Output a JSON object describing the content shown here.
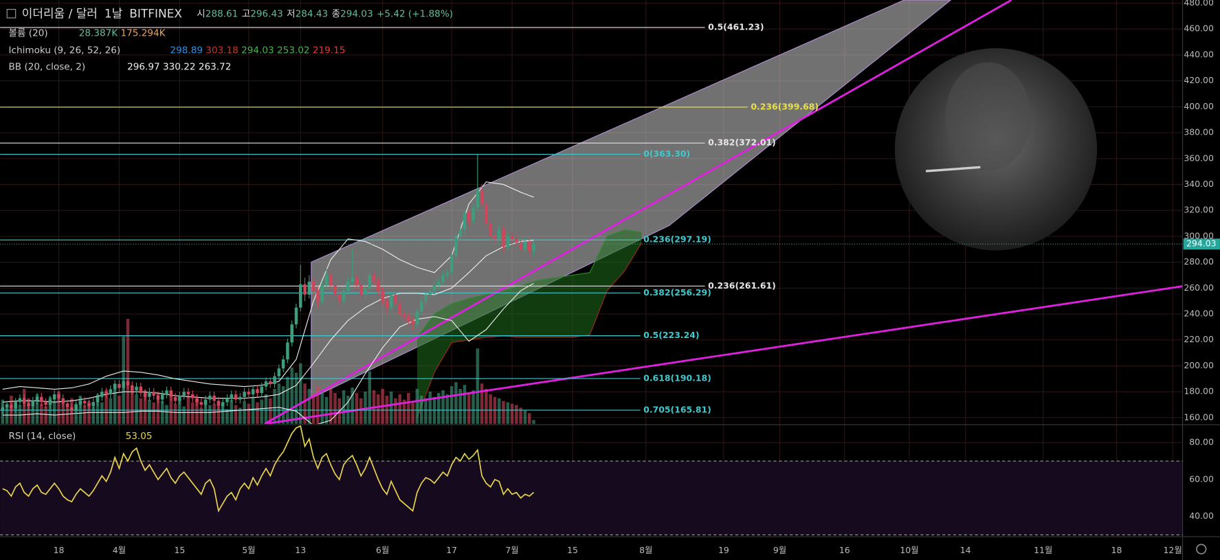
{
  "header": {
    "symbol": "이더리움 / 달러",
    "interval": "1날",
    "exchange": "BITFINEX",
    "ohlc_labels": [
      "시",
      "고",
      "저",
      "종"
    ],
    "change": "+5.42 (+1.88%)"
  },
  "chart_data": {
    "type": "candlestick",
    "up_color": "#3f9c7d",
    "down_color": "#d0465a",
    "candles": [
      [
        166,
        171,
        163,
        168
      ],
      [
        168,
        173,
        165,
        170
      ],
      [
        170,
        173,
        164,
        167
      ],
      [
        167,
        175,
        164,
        172
      ],
      [
        172,
        178,
        169,
        175
      ],
      [
        175,
        178,
        168,
        171
      ],
      [
        171,
        174,
        166,
        169
      ],
      [
        169,
        176,
        166,
        173
      ],
      [
        173,
        179,
        170,
        176
      ],
      [
        176,
        179,
        169,
        172
      ],
      [
        172,
        175,
        167,
        170
      ],
      [
        170,
        177,
        167,
        174
      ],
      [
        174,
        181,
        171,
        178
      ],
      [
        178,
        181,
        172,
        175
      ],
      [
        175,
        178,
        168,
        171
      ],
      [
        171,
        174,
        165,
        168
      ],
      [
        168,
        171,
        163,
        166
      ],
      [
        166,
        173,
        163,
        170
      ],
      [
        170,
        176,
        167,
        173
      ],
      [
        173,
        176,
        168,
        171
      ],
      [
        171,
        174,
        166,
        169
      ],
      [
        169,
        175,
        166,
        172
      ],
      [
        172,
        179,
        169,
        176
      ],
      [
        176,
        183,
        173,
        180
      ],
      [
        180,
        183,
        175,
        178
      ],
      [
        178,
        185,
        175,
        182
      ],
      [
        182,
        189,
        179,
        186
      ],
      [
        186,
        189,
        180,
        183
      ],
      [
        183,
        191,
        180,
        188
      ],
      [
        188,
        191,
        182,
        185
      ],
      [
        185,
        188,
        178,
        181
      ],
      [
        181,
        187,
        178,
        184
      ],
      [
        184,
        187,
        176,
        179
      ],
      [
        179,
        182,
        173,
        176
      ],
      [
        176,
        183,
        173,
        180
      ],
      [
        180,
        183,
        174,
        177
      ],
      [
        177,
        180,
        171,
        174
      ],
      [
        174,
        181,
        171,
        178
      ],
      [
        178,
        184,
        175,
        181
      ],
      [
        181,
        184,
        173,
        176
      ],
      [
        176,
        179,
        170,
        173
      ],
      [
        173,
        180,
        170,
        177
      ],
      [
        177,
        183,
        174,
        180
      ],
      [
        180,
        183,
        175,
        178
      ],
      [
        178,
        181,
        172,
        175
      ],
      [
        175,
        178,
        169,
        172
      ],
      [
        172,
        175,
        167,
        170
      ],
      [
        170,
        177,
        167,
        174
      ],
      [
        174,
        180,
        171,
        177
      ],
      [
        177,
        180,
        170,
        173
      ],
      [
        173,
        176,
        166,
        169
      ],
      [
        169,
        175,
        166,
        172
      ],
      [
        172,
        178,
        169,
        175
      ],
      [
        175,
        181,
        172,
        178
      ],
      [
        178,
        181,
        171,
        174
      ],
      [
        174,
        179,
        171,
        176
      ],
      [
        176,
        183,
        173,
        180
      ],
      [
        180,
        183,
        175,
        178
      ],
      [
        178,
        185,
        175,
        182
      ],
      [
        182,
        185,
        176,
        179
      ],
      [
        179,
        187,
        176,
        184
      ],
      [
        184,
        191,
        181,
        188
      ],
      [
        188,
        191,
        183,
        186
      ],
      [
        186,
        195,
        183,
        192
      ],
      [
        192,
        201,
        189,
        198
      ],
      [
        198,
        208,
        195,
        205
      ],
      [
        205,
        221,
        202,
        218
      ],
      [
        218,
        235,
        215,
        232
      ],
      [
        232,
        248,
        229,
        245
      ],
      [
        245,
        278,
        242,
        263
      ],
      [
        263,
        268,
        250,
        255
      ],
      [
        255,
        270,
        252,
        265
      ],
      [
        265,
        268,
        254,
        258
      ],
      [
        258,
        261,
        245,
        250
      ],
      [
        250,
        265,
        247,
        262
      ],
      [
        262,
        275,
        259,
        270
      ],
      [
        270,
        273,
        259,
        262
      ],
      [
        262,
        265,
        252,
        255
      ],
      [
        255,
        258,
        246,
        250
      ],
      [
        250,
        261,
        247,
        258
      ],
      [
        258,
        268,
        255,
        265
      ],
      [
        265,
        290,
        262,
        268
      ],
      [
        268,
        271,
        259,
        262
      ],
      [
        262,
        265,
        252,
        255
      ],
      [
        255,
        263,
        252,
        260
      ],
      [
        260,
        273,
        257,
        270
      ],
      [
        270,
        273,
        262,
        265
      ],
      [
        265,
        268,
        255,
        258
      ],
      [
        258,
        261,
        247,
        250
      ],
      [
        250,
        253,
        241,
        245
      ],
      [
        245,
        258,
        242,
        255
      ],
      [
        255,
        258,
        245,
        248
      ],
      [
        248,
        251,
        237,
        240
      ],
      [
        240,
        243,
        234,
        238
      ],
      [
        238,
        241,
        231,
        235
      ],
      [
        235,
        238,
        228,
        232
      ],
      [
        232,
        245,
        229,
        242
      ],
      [
        242,
        253,
        239,
        250
      ],
      [
        250,
        258,
        247,
        255
      ],
      [
        255,
        261,
        252,
        258
      ],
      [
        258,
        265,
        255,
        262
      ],
      [
        262,
        268,
        259,
        265
      ],
      [
        265,
        273,
        262,
        270
      ],
      [
        270,
        275,
        267,
        272
      ],
      [
        272,
        288,
        269,
        285
      ],
      [
        285,
        303,
        282,
        300
      ],
      [
        300,
        310,
        297,
        305
      ],
      [
        305,
        321,
        302,
        318
      ],
      [
        318,
        321,
        308,
        312
      ],
      [
        312,
        325,
        309,
        322
      ],
      [
        322,
        363.3,
        319,
        335
      ],
      [
        335,
        340,
        322,
        325
      ],
      [
        325,
        328,
        306,
        310
      ],
      [
        310,
        313,
        296,
        300
      ],
      [
        300,
        302,
        294,
        298
      ],
      [
        298,
        309,
        295,
        305
      ],
      [
        305,
        308,
        288,
        292
      ],
      [
        292,
        303,
        289,
        300
      ],
      [
        300,
        303,
        294,
        298
      ],
      [
        298,
        301,
        292,
        295
      ],
      [
        295,
        298,
        286,
        290
      ],
      [
        290,
        299,
        287,
        296
      ],
      [
        296,
        298,
        286,
        288.61
      ],
      [
        288.61,
        296.43,
        284.43,
        294.03
      ]
    ],
    "xlim": [
      -0.6,
      273.3
    ],
    "xticks": [
      {
        "value": 13,
        "label": "18"
      },
      {
        "value": 27,
        "label": "4월"
      },
      {
        "value": 41,
        "label": "15"
      },
      {
        "value": 57,
        "label": "5월"
      },
      {
        "value": 69,
        "label": "13"
      },
      {
        "value": 88,
        "label": "6월"
      },
      {
        "value": 104,
        "label": "17"
      },
      {
        "value": 118,
        "label": "7월"
      },
      {
        "value": 132,
        "label": "15"
      },
      {
        "value": 149,
        "label": "8월"
      },
      {
        "value": 167,
        "label": "19"
      },
      {
        "value": 180,
        "label": "9월"
      },
      {
        "value": 195,
        "label": "16"
      },
      {
        "value": 210,
        "label": "10월"
      },
      {
        "value": 223,
        "label": "14"
      },
      {
        "value": 241,
        "label": "11월"
      },
      {
        "value": 258,
        "label": "18"
      },
      {
        "value": 271,
        "label": "12월"
      }
    ],
    "ylim": [
      155.2,
      482.4
    ],
    "yticks": [
      {
        "value": 480,
        "label": "480.00"
      },
      {
        "value": 460,
        "label": "460.00"
      },
      {
        "value": 440,
        "label": "440.00"
      },
      {
        "value": 420,
        "label": "420.00"
      },
      {
        "value": 400,
        "label": "400.00"
      },
      {
        "value": 380,
        "label": "380.00"
      },
      {
        "value": 360,
        "label": "360.00"
      },
      {
        "value": 340,
        "label": "340.00"
      },
      {
        "value": 320,
        "label": "320.00"
      },
      {
        "value": 300,
        "label": "300.00"
      },
      {
        "value": 280,
        "label": "280.00"
      },
      {
        "value": 260,
        "label": "260.00"
      },
      {
        "value": 240,
        "label": "240.00"
      },
      {
        "value": 220,
        "label": "220.00"
      },
      {
        "value": 200,
        "label": "200.00"
      },
      {
        "value": 180,
        "label": "180.00"
      },
      {
        "value": 160,
        "label": "160.00"
      }
    ],
    "grid": true,
    "last_price_color": "#26a69a",
    "volume": {
      "name": "볼륨 (20)",
      "readout": [
        "28.387K",
        "175.294K"
      ],
      "readout_colors": [
        "#5fbf9a",
        "#e8a05a"
      ],
      "values": [
        180,
        150,
        210,
        170,
        140,
        260,
        190,
        160,
        220,
        150,
        130,
        200,
        170,
        240,
        160,
        120,
        190,
        150,
        210,
        140,
        170,
        130,
        220,
        160,
        250,
        190,
        300,
        210,
        650,
        780,
        280,
        220,
        190,
        250,
        180,
        160,
        230,
        170,
        140,
        200,
        150,
        180,
        130,
        210,
        160,
        190,
        120,
        170,
        140,
        150,
        130,
        160,
        110,
        180,
        140,
        120,
        170,
        150,
        200,
        160,
        180,
        220,
        190,
        260,
        300,
        280,
        350,
        420,
        380,
        450,
        300,
        260,
        220,
        280,
        240,
        200,
        260,
        230,
        190,
        250,
        210,
        270,
        230,
        190,
        240,
        390,
        250,
        220,
        260,
        210,
        240,
        190,
        220,
        180,
        230,
        170,
        260,
        210,
        190,
        240,
        200,
        230,
        250,
        220,
        280,
        310,
        260,
        290,
        230,
        250,
        560,
        300,
        260,
        220,
        200,
        190,
        170,
        160,
        150,
        140,
        120,
        100,
        80,
        28.387
      ]
    },
    "ichimoku": {
      "name": "Ichimoku (9, 26, 52, 26)",
      "readout": [
        298.89,
        303.18,
        294.03,
        253.02,
        219.15
      ],
      "readout_colors": [
        "#2e8fe6",
        "#c0392b",
        "#4caf50",
        "#4caf50",
        "#e53935"
      ],
      "x": [
        96,
        100,
        104,
        108,
        112,
        116,
        120,
        124,
        128,
        132,
        136,
        140,
        144,
        148
      ],
      "span_a": [
        222,
        240,
        248,
        252,
        255,
        258,
        262,
        266,
        268,
        270,
        272,
        300,
        305,
        303
      ],
      "span_b": [
        160,
        195,
        218,
        220,
        222,
        223,
        222,
        222,
        222,
        222,
        224,
        258,
        273,
        295
      ]
    },
    "bollinger": {
      "name": "BB (20, close, 2)",
      "x": [
        0,
        4,
        8,
        12,
        16,
        20,
        24,
        28,
        32,
        36,
        40,
        44,
        48,
        52,
        56,
        60,
        64,
        68,
        72,
        76,
        80,
        84,
        88,
        92,
        96,
        100,
        104,
        108,
        112,
        116,
        120,
        123
      ],
      "upper": [
        182,
        184,
        183,
        182,
        183,
        186,
        192,
        196,
        195,
        193,
        190,
        188,
        186,
        185,
        184,
        185,
        188,
        205,
        250,
        282,
        298,
        296,
        290,
        282,
        276,
        272,
        285,
        325,
        342,
        340,
        334,
        330.22
      ],
      "middle": [
        172,
        173,
        173,
        172,
        173,
        175,
        178,
        180,
        180,
        179,
        177,
        176,
        175,
        175,
        175,
        176,
        178,
        185,
        202,
        220,
        235,
        245,
        252,
        256,
        256,
        255,
        260,
        272,
        285,
        292,
        296,
        296.97
      ],
      "lower": [
        162,
        162,
        163,
        162,
        163,
        164,
        164,
        164,
        165,
        165,
        164,
        164,
        164,
        165,
        166,
        167,
        168,
        165,
        154,
        158,
        172,
        194,
        214,
        230,
        236,
        238,
        235,
        219,
        228,
        244,
        258,
        263.72
      ]
    },
    "fib_levels": [
      {
        "value": 461.23,
        "label": "0.5(461.23)",
        "color": "#e6e6e6"
      },
      {
        "value": 399.68,
        "label": "0.236(399.68)",
        "color": "#e8e04a"
      },
      {
        "value": 372.01,
        "label": "0.382(372.01)",
        "color": "#e6e6e6"
      },
      {
        "value": 363.3,
        "label": "0(363.30)",
        "color": "#40c8cc"
      },
      {
        "value": 297.19,
        "label": "0.236(297.19)",
        "color": "#40c8cc"
      },
      {
        "value": 261.61,
        "label": "0.236(261.61)",
        "color": "#e6e6e6"
      },
      {
        "value": 256.29,
        "label": "0.382(256.29)",
        "color": "#40c8cc"
      },
      {
        "value": 223.24,
        "label": "0.5(223.24)",
        "color": "#40c8cc"
      },
      {
        "value": 190.18,
        "label": "0.618(190.18)",
        "color": "#40c8cc"
      },
      {
        "value": 165.81,
        "label": "0.705(165.81)",
        "color": "#40c8cc"
      }
    ],
    "rsi": {
      "name": "RSI (14, close)",
      "color": "#e8d44d",
      "ylim": [
        29.05,
        89.3
      ],
      "yticks": [
        {
          "value": 80,
          "label": "80.00"
        },
        {
          "value": 60,
          "label": "60.00"
        },
        {
          "value": 40,
          "label": "40.00"
        }
      ],
      "bands": [
        30,
        70
      ],
      "values": [
        55,
        54,
        51,
        56,
        58,
        53,
        51,
        55,
        57,
        53,
        52,
        55,
        58,
        55,
        51,
        49,
        48,
        52,
        55,
        53,
        51,
        54,
        58,
        62,
        59,
        64,
        72,
        66,
        74,
        70,
        75,
        77,
        70,
        65,
        68,
        64,
        60,
        63,
        66,
        61,
        58,
        62,
        64,
        61,
        58,
        55,
        52,
        58,
        60,
        55,
        43,
        47,
        51,
        53,
        49,
        55,
        58,
        55,
        61,
        57,
        62,
        66,
        62,
        68,
        72,
        75,
        80,
        85,
        88,
        89,
        78,
        82,
        72,
        66,
        72,
        74,
        68,
        63,
        60,
        68,
        71,
        73,
        68,
        62,
        66,
        72,
        66,
        60,
        55,
        52,
        59,
        54,
        49,
        47,
        45,
        43,
        53,
        58,
        61,
        60,
        58,
        61,
        64,
        62,
        68,
        72,
        70,
        74,
        71,
        73,
        76,
        62,
        58,
        56,
        60,
        59,
        52,
        55,
        52,
        53,
        50,
        52,
        51,
        53.05
      ]
    }
  }
}
